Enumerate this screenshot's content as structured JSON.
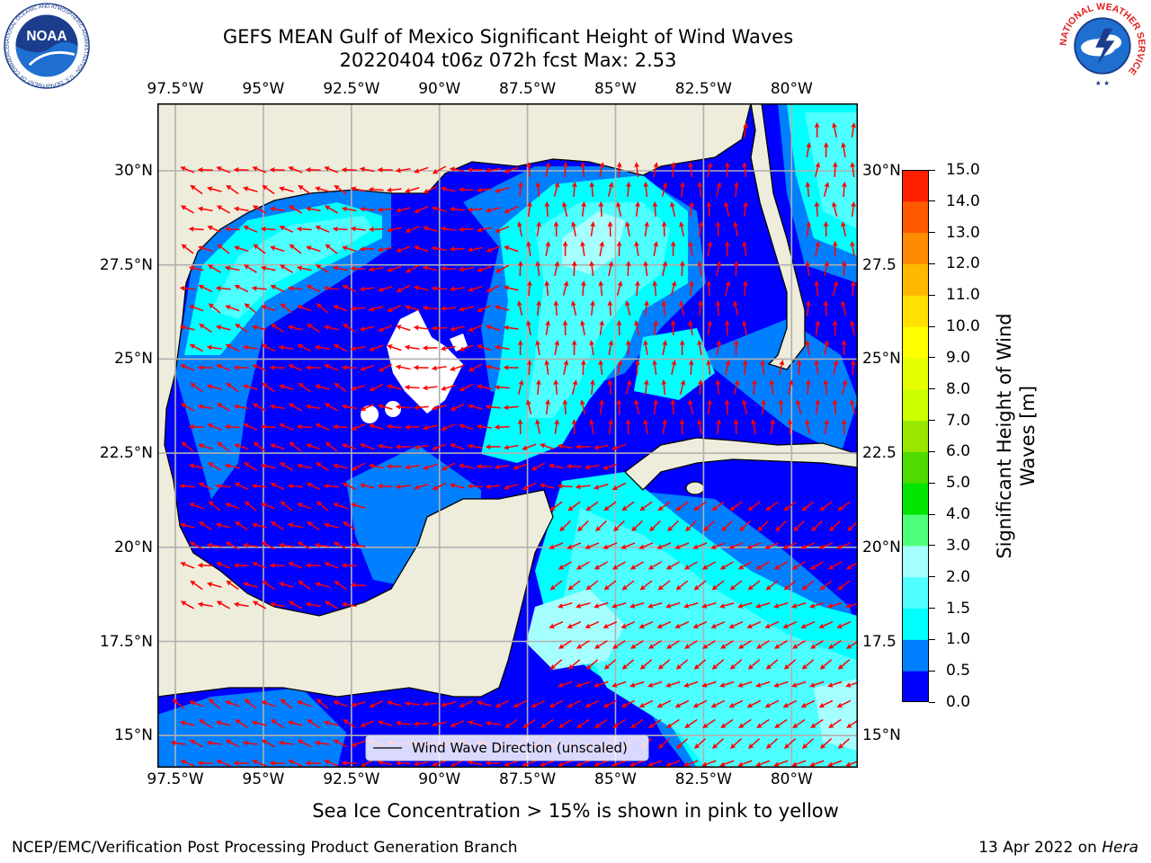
{
  "header": {
    "title_line1": "GEFS MEAN Gulf of Mexico Significant Height of Wind Waves",
    "title_line2": "20220404 t06z 072h fcst   Max: 2.53"
  },
  "logos": {
    "left": "NOAA",
    "left_ring_text": "NATIONAL OCEANIC AND ATMOSPHERIC ADMINISTRATION · U.S. DEPARTMENT OF COMMERCE",
    "right_ring_text": "NATIONAL WEATHER SERVICE"
  },
  "map": {
    "lon_labels": [
      "97.5°W",
      "95°W",
      "92.5°W",
      "90°W",
      "87.5°W",
      "85°W",
      "82.5°W",
      "80°W"
    ],
    "lat_labels_left": [
      "30°N",
      "27.5°N",
      "25°N",
      "22.5°N",
      "20°N",
      "17.5°N",
      "15°N"
    ],
    "lat_labels_right": [
      "30°N",
      "27.5",
      "25°N",
      "22.5",
      "20°N",
      "17.5",
      "15°N"
    ],
    "legend_label": "Wind Wave Direction (unscaled)",
    "land_color": "#eeeddc",
    "arrow_color": "#ff0000"
  },
  "colorbar": {
    "label": "Significant Height of Wind Waves [m]",
    "label_line1": "Significant Height of Wind",
    "label_line2": "Waves [m]",
    "ticks": [
      "0.0",
      "0.5",
      "1.0",
      "1.5",
      "2.0",
      "3.0",
      "4.0",
      "5.0",
      "6.0",
      "7.0",
      "8.0",
      "9.0",
      "10.0",
      "11.0",
      "12.0",
      "13.0",
      "14.0",
      "15.0"
    ],
    "colors": [
      "#0000ff",
      "#007fff",
      "#00ffff",
      "#4dffff",
      "#a6ffff",
      "#4dff7a",
      "#00e600",
      "#4ddb00",
      "#99e600",
      "#ccff00",
      "#e6ff00",
      "#ffff00",
      "#ffe000",
      "#ffb800",
      "#ff8c00",
      "#ff5a00",
      "#ff2000"
    ]
  },
  "footer": {
    "note": "Sea Ice Concentration > 15% is shown in pink to yellow",
    "credit": "NCEP/EMC/Verification Post Processing Product Generation Branch",
    "date": "13 Apr 2022 on",
    "host": "Hera"
  }
}
